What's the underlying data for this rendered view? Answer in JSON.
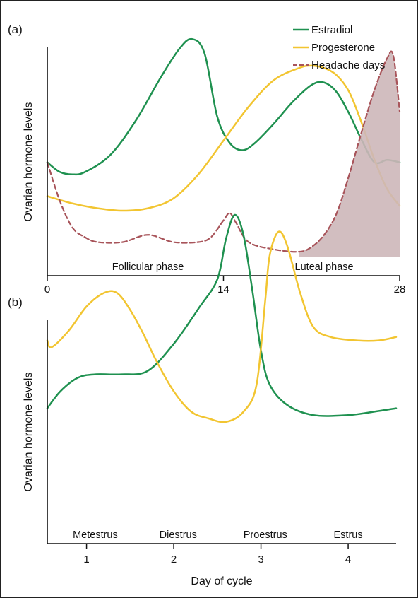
{
  "colors": {
    "estradiol": "#1f9150",
    "progesterone": "#f2c531",
    "headache": "#a8545a",
    "headache_fill": "#cdb7b9",
    "axis": "#111111"
  },
  "chart_data": [
    {
      "type": "line",
      "panel_label": "(a)",
      "title": "",
      "xlabel": "",
      "ylabel": "Ovarian hormone levels",
      "xlim": [
        0,
        28
      ],
      "ylim": [
        0,
        100
      ],
      "xticks": [
        0,
        14,
        28
      ],
      "xtick_labels": [
        "0",
        "14",
        "28"
      ],
      "grid": false,
      "legend": {
        "placement": "top-right",
        "entries": [
          {
            "label": "Estradiol",
            "color_key": "estradiol",
            "style": "solid"
          },
          {
            "label": "Progesterone",
            "color_key": "progesterone",
            "style": "solid"
          },
          {
            "label": "Headache days",
            "color_key": "headache",
            "style": "dashed"
          }
        ]
      },
      "phase_labels": [
        {
          "text": "Follicular phase",
          "x": 8
        },
        {
          "text": "Luteal phase",
          "x": 22
        }
      ],
      "series": [
        {
          "name": "Estradiol",
          "color_key": "estradiol",
          "style": "solid",
          "x": [
            0,
            1,
            2,
            3,
            5,
            7,
            9,
            10.5,
            11.5,
            12.5,
            13.5,
            14.5,
            15.5,
            16.5,
            18,
            19.5,
            21,
            22,
            23,
            24,
            25,
            26,
            27,
            28
          ],
          "y": [
            39,
            35,
            34,
            35,
            42,
            56,
            74,
            86,
            90,
            84,
            58,
            47,
            44,
            47,
            55,
            64,
            71,
            72,
            68,
            59,
            48,
            39,
            40,
            39
          ]
        },
        {
          "name": "Progesterone",
          "color_key": "progesterone",
          "style": "solid",
          "x": [
            0,
            2,
            4,
            6,
            8,
            10,
            12,
            14,
            16,
            18,
            20,
            21,
            22,
            23,
            24,
            25,
            26,
            27,
            28
          ],
          "y": [
            25,
            22,
            20,
            19,
            20,
            24,
            34,
            48,
            62,
            73,
            78,
            79,
            78,
            75,
            68,
            55,
            40,
            28,
            21
          ]
        },
        {
          "name": "Headache days",
          "color_key": "headache",
          "style": "dashed",
          "filled_from_x": 21,
          "x": [
            0,
            1,
            2,
            3,
            4,
            6,
            8,
            10,
            12,
            13,
            14,
            14.5,
            15,
            16,
            18,
            20,
            21,
            22,
            23,
            24,
            25,
            26,
            27,
            27.5,
            28
          ],
          "y": [
            39,
            23,
            12,
            8,
            6,
            6,
            9,
            6,
            6,
            8,
            15,
            18,
            14,
            6,
            3,
            2,
            4,
            9,
            18,
            34,
            52,
            69,
            82,
            83,
            60
          ]
        }
      ]
    },
    {
      "type": "line",
      "panel_label": "(b)",
      "title": "",
      "xlabel": "Day of cycle",
      "ylabel": "Ovarian hormone levels",
      "xlim": [
        0.55,
        4.55
      ],
      "ylim": [
        0,
        100
      ],
      "xticks": [
        1,
        2,
        3,
        4
      ],
      "xtick_labels": [
        "1",
        "2",
        "3",
        "4"
      ],
      "grid": false,
      "legend": null,
      "phase_labels": [
        {
          "text": "Metestrus",
          "x": 1.1
        },
        {
          "text": "Diestrus",
          "x": 2.05
        },
        {
          "text": "Proestrus",
          "x": 3.05
        },
        {
          "text": "Estrus",
          "x": 4.0
        }
      ],
      "series": [
        {
          "name": "Estradiol",
          "color_key": "estradiol",
          "style": "solid",
          "x": [
            0.55,
            0.7,
            0.9,
            1.1,
            1.4,
            1.7,
            2.0,
            2.3,
            2.5,
            2.6,
            2.7,
            2.8,
            2.9,
            3.0,
            3.1,
            3.3,
            3.6,
            4.0,
            4.3,
            4.55
          ],
          "y": [
            33,
            38,
            42,
            43,
            43,
            44,
            52,
            63,
            71,
            83,
            90,
            84,
            68,
            50,
            40,
            34,
            31,
            31,
            32,
            33
          ]
        },
        {
          "name": "Progesterone",
          "color_key": "progesterone",
          "style": "solid",
          "x": [
            0.55,
            0.6,
            0.8,
            1.0,
            1.2,
            1.35,
            1.5,
            1.65,
            1.8,
            2.0,
            2.2,
            2.4,
            2.6,
            2.8,
            2.95,
            3.05,
            3.1,
            3.2,
            3.3,
            3.45,
            3.6,
            3.8,
            4.1,
            4.35,
            4.55
          ],
          "y": [
            53,
            51,
            56,
            63,
            67,
            67,
            62,
            55,
            47,
            38,
            32,
            30,
            29,
            32,
            40,
            65,
            78,
            85,
            81,
            67,
            57,
            54,
            53,
            53,
            54
          ]
        }
      ]
    }
  ]
}
